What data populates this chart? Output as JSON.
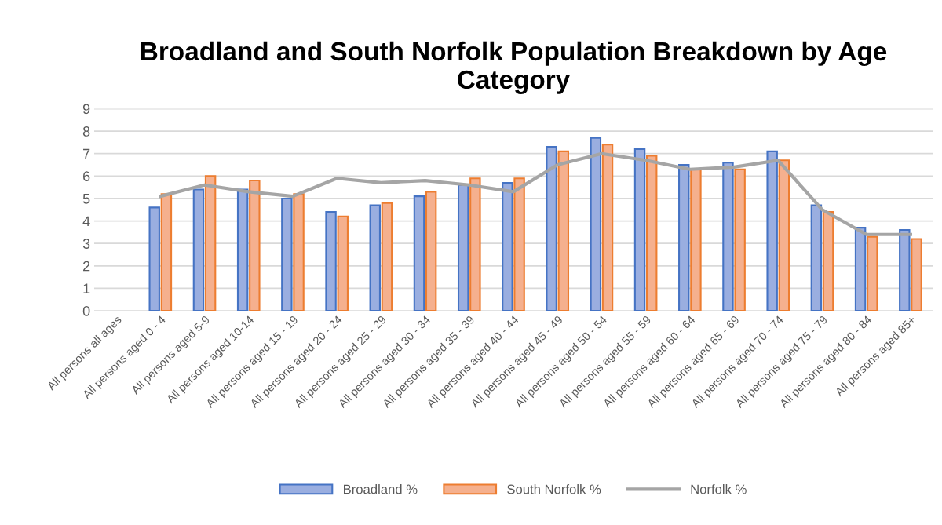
{
  "chart_data": {
    "type": "bar",
    "title": "Broadland and South Norfolk Population Breakdown by Age Category",
    "categories": [
      "All persons all ages",
      "All persons aged 0 - 4",
      "All persons aged 5-9",
      "All persons aged 10-14",
      "All persons aged 15 - 19",
      "All persons aged 20 - 24",
      "All persons aged 25 - 29",
      "All persons aged 30 - 34",
      "All persons aged 35 - 39",
      "All persons aged 40 - 44",
      "All persons aged 45 - 49",
      "All persons aged 50 - 54",
      "All persons aged 55 - 59",
      "All persons aged 60 - 64",
      "All persons aged 65 - 69",
      "All persons aged 70 - 74",
      "All persons aged 75 - 79",
      "All persons aged 80 - 84",
      "All persons aged 85+"
    ],
    "series": [
      {
        "name": "Broadland %",
        "color": "#9aaee0",
        "values": [
          null,
          4.6,
          5.4,
          5.4,
          5.0,
          4.4,
          4.7,
          5.1,
          5.6,
          5.7,
          7.3,
          7.7,
          7.2,
          6.5,
          6.6,
          7.1,
          4.7,
          3.7,
          3.6
        ]
      },
      {
        "name": "South Norfolk %",
        "color": "#f5b08e",
        "values": [
          null,
          5.2,
          6.0,
          5.8,
          5.2,
          4.2,
          4.8,
          5.3,
          5.9,
          5.9,
          7.1,
          7.4,
          6.9,
          6.3,
          6.3,
          6.7,
          4.4,
          3.3,
          3.2
        ]
      },
      {
        "name": "Norfolk %",
        "type": "line",
        "color": "#a5a5a5",
        "values": [
          null,
          5.1,
          5.6,
          5.3,
          5.1,
          5.9,
          5.7,
          5.8,
          5.6,
          5.3,
          6.5,
          7.0,
          6.7,
          6.3,
          6.4,
          6.7,
          4.5,
          3.4,
          3.4
        ]
      }
    ],
    "ylim": [
      0,
      9
    ],
    "yticks": [
      0,
      1,
      2,
      3,
      4,
      5,
      6,
      7,
      8,
      9
    ],
    "grid": "y",
    "legend": "bottom"
  }
}
